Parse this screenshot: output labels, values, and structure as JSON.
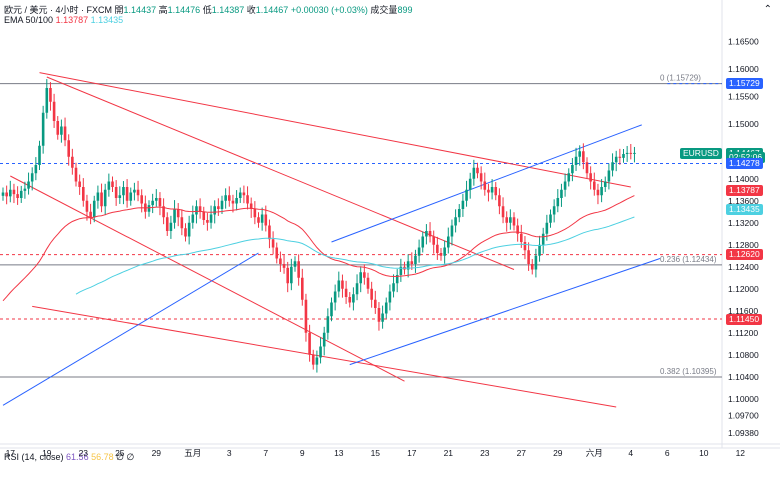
{
  "header": {
    "symbol_line": "欧元 / 美元 · 4小时 · FXCM",
    "open_label": "開",
    "open": "1.14437",
    "high_label": "高",
    "high": "1.14476",
    "low_label": "低",
    "low": "1.14387",
    "close_label": "收",
    "close": "1.14467",
    "change": "+0.00030 (+0.03%)",
    "volume_label": "成交量",
    "volume": "899",
    "ema_label": "EMA 50/100",
    "ema50": "1.13787",
    "ema100": "1.13435",
    "rsi_label": "RSI (14, close)",
    "rsi_value": "61.56",
    "rsi_ma": "56.78",
    "rsi_extra1": "∅",
    "rsi_extra2": "∅"
  },
  "colors": {
    "up": "#089981",
    "down": "#f23645",
    "ema50": "#f23645",
    "ema100": "#4dd0e1",
    "blue_line": "#2962ff",
    "red_line": "#f23645",
    "gray_line": "#787b86"
  },
  "chart_data": {
    "type": "candlestick",
    "symbol": "EURUSD",
    "timeframe": "4h",
    "ylim": [
      1.0925,
      1.1685
    ],
    "y_ticks": [
      "1.16500",
      "1.16000",
      "1.15500",
      "1.15000",
      "1.14500",
      "1.14000",
      "1.13600",
      "1.13200",
      "1.12800",
      "1.12400",
      "1.12000",
      "1.11600",
      "1.11200",
      "1.10800",
      "1.10400",
      "1.10000",
      "1.09700",
      "1.09380"
    ],
    "y_tick_values": [
      1.165,
      1.16,
      1.155,
      1.15,
      1.145,
      1.14,
      1.136,
      1.132,
      1.128,
      1.124,
      1.12,
      1.116,
      1.112,
      1.108,
      1.104,
      1.1,
      1.097,
      1.0938
    ],
    "x_labels": [
      "17",
      "19",
      "23",
      "25",
      "29",
      "五月",
      "3",
      "7",
      "9",
      "13",
      "15",
      "17",
      "21",
      "23",
      "27",
      "29",
      "六月",
      "4",
      "6",
      "10",
      "12"
    ],
    "x_label_bars": [
      2,
      12,
      22,
      32,
      42,
      52,
      62,
      72,
      82,
      92,
      102,
      112,
      122,
      132,
      142,
      152,
      162,
      172,
      182,
      192,
      202
    ],
    "last_bar_index": 182,
    "price_tags": [
      {
        "label": "1.15729",
        "value": 1.15729,
        "color": "#2962ff"
      },
      {
        "label": "EURUSD",
        "value": 1.14467,
        "color": "#089981",
        "prefix": true
      },
      {
        "label": "1.14467",
        "value": 1.14467,
        "color": "#089981"
      },
      {
        "label": "02:52:06",
        "value": 1.14395,
        "color": "#089981"
      },
      {
        "label": "1.14278",
        "value": 1.14278,
        "color": "#2962ff"
      },
      {
        "label": "1.13787",
        "value": 1.13787,
        "color": "#f23645"
      },
      {
        "label": "1.13435",
        "value": 1.13435,
        "color": "#4dd0e1"
      },
      {
        "label": "1.12620",
        "value": 1.1262,
        "color": "#f23645"
      },
      {
        "label": "1.11450",
        "value": 1.1145,
        "color": "#f23645"
      }
    ],
    "fib_annotations": [
      {
        "text": "0 (1.15729)",
        "value": 1.15729
      },
      {
        "text": "0.236 (1.12434)",
        "value": 1.12434
      },
      {
        "text": "0.382 (1.10395)",
        "value": 1.10395
      }
    ],
    "horizontal_lines": [
      {
        "value": 1.15729,
        "style": "solid",
        "color": "#787b86"
      },
      {
        "value": 1.14278,
        "style": "dashed",
        "color": "#2962ff"
      },
      {
        "value": 1.12434,
        "style": "solid",
        "color": "#787b86"
      },
      {
        "value": 1.1262,
        "style": "dashed",
        "color": "#f23645"
      },
      {
        "value": 1.1145,
        "style": "dashed",
        "color": "#f23645"
      },
      {
        "value": 1.10395,
        "style": "solid",
        "color": "#787b86"
      },
      {
        "value": 1.15729,
        "style": "dashed",
        "color": "#2962ff",
        "from_bar": 182
      }
    ],
    "trend_lines": [
      {
        "color": "#f23645",
        "p1": [
          10,
          1.1593
        ],
        "p2": [
          172,
          1.1385
        ]
      },
      {
        "color": "#f23645",
        "p1": [
          12,
          1.1585
        ],
        "p2": [
          140,
          1.1235
        ]
      },
      {
        "color": "#f23645",
        "p1": [
          2,
          1.1405
        ],
        "p2": [
          110,
          1.1032
        ]
      },
      {
        "color": "#f23645",
        "p1": [
          8,
          1.1168
        ],
        "p2": [
          168,
          1.0985
        ]
      },
      {
        "color": "#2962ff",
        "p1": [
          0,
          1.0988
        ],
        "p2": [
          70,
          1.1265
        ]
      },
      {
        "color": "#2962ff",
        "p1": [
          90,
          1.1285
        ],
        "p2": [
          175,
          1.1498
        ]
      },
      {
        "color": "#2962ff",
        "p1": [
          95,
          1.1062
        ],
        "p2": [
          180,
          1.1255
        ]
      }
    ],
    "candles_close": [
      1.1375,
      1.1368,
      1.138,
      1.1372,
      1.1365,
      1.1378,
      1.1382,
      1.1395,
      1.141,
      1.1425,
      1.146,
      1.152,
      1.1565,
      1.154,
      1.1505,
      1.148,
      1.1495,
      1.147,
      1.144,
      1.142,
      1.1395,
      1.1385,
      1.136,
      1.134,
      1.133,
      1.136,
      1.1375,
      1.135,
      1.138,
      1.1395,
      1.1385,
      1.1365,
      1.137,
      1.1385,
      1.136,
      1.1375,
      1.138,
      1.137,
      1.1355,
      1.134,
      1.1352,
      1.136,
      1.1365,
      1.135,
      1.133,
      1.1305,
      1.132,
      1.1345,
      1.133,
      1.131,
      1.1295,
      1.132,
      1.1335,
      1.135,
      1.134,
      1.1325,
      1.132,
      1.1335,
      1.135,
      1.1345,
      1.136,
      1.137,
      1.136,
      1.1355,
      1.1365,
      1.1375,
      1.137,
      1.1355,
      1.1345,
      1.133,
      1.132,
      1.1335,
      1.1315,
      1.129,
      1.1275,
      1.1255,
      1.1245,
      1.1238,
      1.121,
      1.124,
      1.125,
      1.122,
      1.118,
      1.112,
      1.108,
      1.1062,
      1.1075,
      1.1095,
      1.112,
      1.115,
      1.1175,
      1.1195,
      1.1215,
      1.12,
      1.1185,
      1.1175,
      1.119,
      1.121,
      1.123,
      1.122,
      1.12,
      1.118,
      1.1165,
      1.114,
      1.1155,
      1.1175,
      1.1195,
      1.121,
      1.1225,
      1.124,
      1.1235,
      1.125,
      1.1245,
      1.126,
      1.1275,
      1.1295,
      1.1305,
      1.1295,
      1.128,
      1.1265,
      1.126,
      1.1275,
      1.1295,
      1.1315,
      1.133,
      1.1345,
      1.136,
      1.138,
      1.14,
      1.142,
      1.141,
      1.1395,
      1.138,
      1.1375,
      1.1385,
      1.137,
      1.135,
      1.133,
      1.132,
      1.133,
      1.1315,
      1.13,
      1.1285,
      1.127,
      1.1245,
      1.1235,
      1.126,
      1.128,
      1.13,
      1.132,
      1.1335,
      1.135,
      1.1365,
      1.138,
      1.1395,
      1.141,
      1.1425,
      1.144,
      1.145,
      1.143,
      1.141,
      1.1395,
      1.138,
      1.137,
      1.1385,
      1.1395,
      1.1415,
      1.143,
      1.144,
      1.1438,
      1.1445,
      1.1447,
      1.1446,
      1.1447
    ]
  }
}
